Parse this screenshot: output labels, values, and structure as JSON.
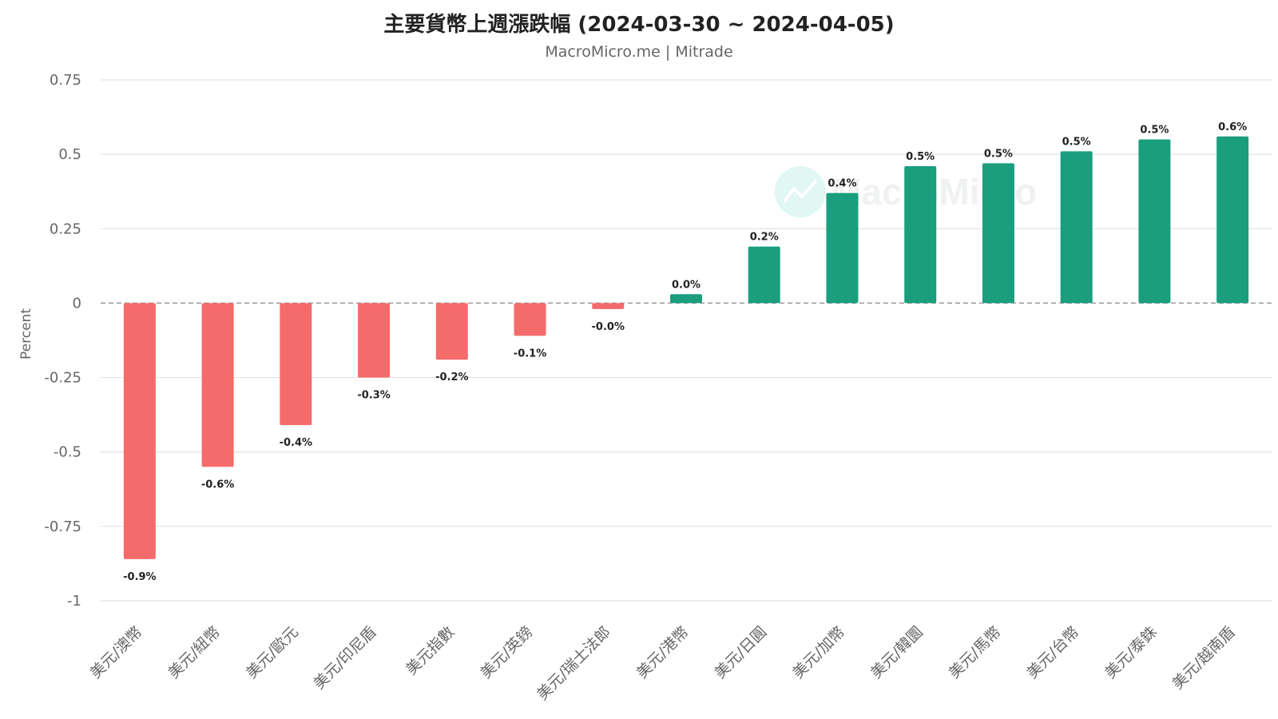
{
  "header": {
    "title": "主要貨幣上週漲跌幅 (2024-03-30 ~ 2024-04-05)",
    "subtitle": "MacroMicro.me | Mitrade"
  },
  "watermark": {
    "text": "MacroMicro"
  },
  "colors": {
    "negative": "#f56b6b",
    "positive": "#1a9e7e",
    "grid": "#e3e3e3",
    "zero_line": "#9a9a9a",
    "axis_text": "#666666",
    "label_text": "#222222"
  },
  "chart_data": {
    "type": "bar",
    "title": "主要貨幣上週漲跌幅 (2024-03-30 ~ 2024-04-05)",
    "ylabel": "Percent",
    "ylim": [
      -1,
      0.75
    ],
    "yticks": [
      0.75,
      0.5,
      0.25,
      0,
      -0.25,
      -0.5,
      -0.75,
      -1
    ],
    "ytick_labels": [
      "0.75",
      "0.5",
      "0.25",
      "0",
      "-0.25",
      "-0.5",
      "-0.75",
      "-1"
    ],
    "grid": true,
    "categories": [
      "美元/澳幣",
      "美元/紐幣",
      "美元/歐元",
      "美元/印尼盾",
      "美元指數",
      "美元/英鎊",
      "美元/瑞士法郎",
      "美元/港幣",
      "美元/日圓",
      "美元/加幣",
      "美元/韓圜",
      "美元/馬幣",
      "美元/台幣",
      "美元/泰銖",
      "美元/越南盾"
    ],
    "values": [
      -0.86,
      -0.55,
      -0.41,
      -0.25,
      -0.19,
      -0.11,
      -0.02,
      0.03,
      0.19,
      0.37,
      0.46,
      0.47,
      0.51,
      0.55,
      0.56
    ],
    "data_labels": [
      "-0.9%",
      "-0.6%",
      "-0.4%",
      "-0.3%",
      "-0.2%",
      "-0.1%",
      "-0.0%",
      "0.0%",
      "0.2%",
      "0.4%",
      "0.5%",
      "0.5%",
      "0.5%",
      "0.5%",
      "0.6%"
    ]
  }
}
